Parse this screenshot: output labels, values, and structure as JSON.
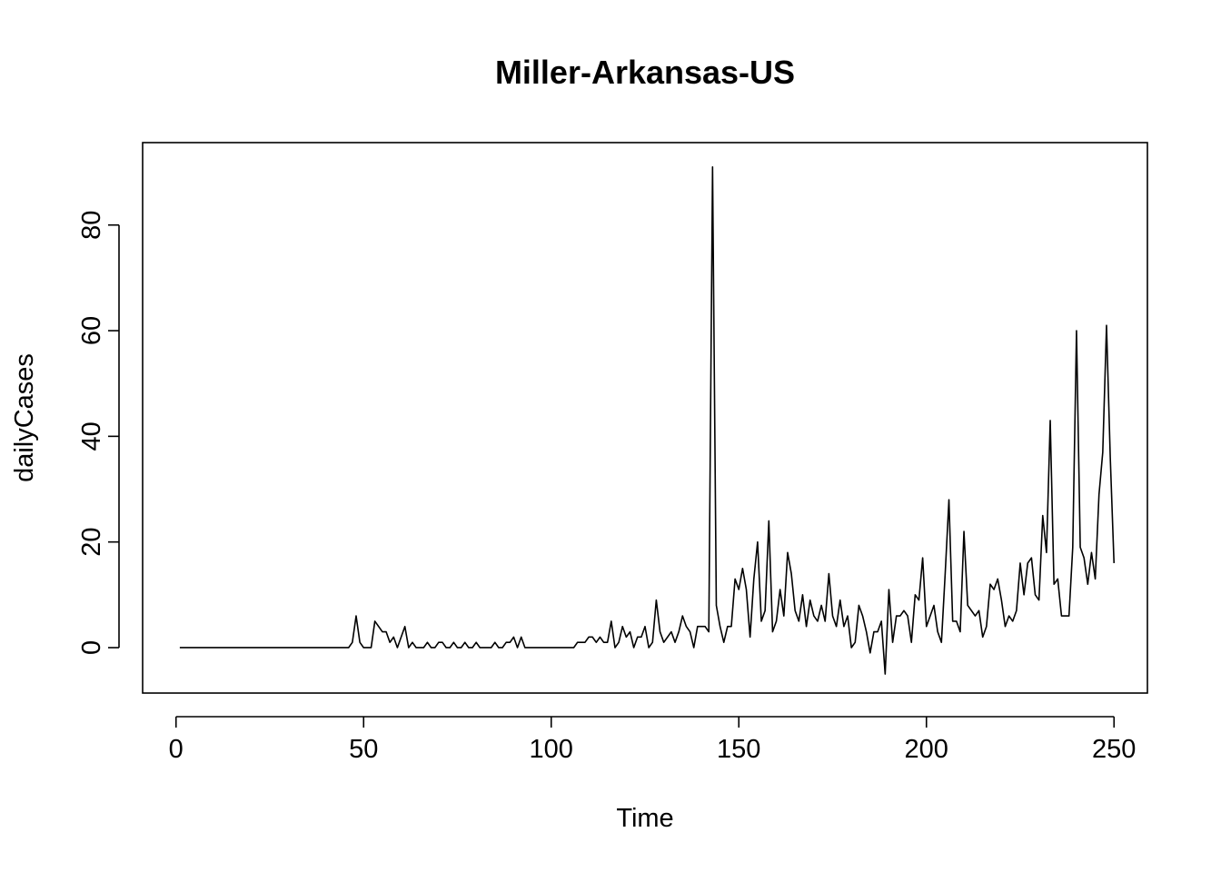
{
  "chart_data": {
    "type": "line",
    "title": "Miller-Arkansas-US",
    "xlabel": "Time",
    "ylabel": "dailyCases",
    "xlim": [
      -8.9,
      258.9
    ],
    "ylim": [
      -8.6,
      95.6
    ],
    "xticks": [
      0,
      50,
      100,
      150,
      200,
      250
    ],
    "yticks": [
      0,
      20,
      40,
      60,
      80
    ],
    "x_start": 1,
    "series": [
      {
        "color": "#000000",
        "values": [
          0,
          0,
          0,
          0,
          0,
          0,
          0,
          0,
          0,
          0,
          0,
          0,
          0,
          0,
          0,
          0,
          0,
          0,
          0,
          0,
          0,
          0,
          0,
          0,
          0,
          0,
          0,
          0,
          0,
          0,
          0,
          0,
          0,
          0,
          0,
          0,
          0,
          0,
          0,
          0,
          0,
          0,
          0,
          0,
          0,
          0,
          1,
          6,
          1,
          0,
          0,
          0,
          5,
          4,
          3,
          3,
          1,
          2,
          0,
          2,
          4,
          0,
          1,
          0,
          0,
          0,
          1,
          0,
          0,
          1,
          1,
          0,
          0,
          1,
          0,
          0,
          1,
          0,
          0,
          1,
          0,
          0,
          0,
          0,
          1,
          0,
          0,
          1,
          1,
          2,
          0,
          2,
          0,
          0,
          0,
          0,
          0,
          0,
          0,
          0,
          0,
          0,
          0,
          0,
          0,
          0,
          1,
          1,
          1,
          2,
          2,
          1,
          2,
          1,
          1,
          5,
          0,
          1,
          4,
          2,
          3,
          0,
          2,
          2,
          4,
          0,
          1,
          9,
          3,
          1,
          2,
          3,
          1,
          3,
          6,
          4,
          3,
          0,
          4,
          4,
          4,
          3,
          91,
          8,
          4,
          1,
          4,
          4,
          13,
          11,
          15,
          11,
          2,
          13,
          20,
          5,
          7,
          24,
          3,
          5,
          11,
          6,
          18,
          14,
          7,
          5,
          10,
          4,
          9,
          6,
          5,
          8,
          5,
          14,
          6,
          4,
          9,
          4,
          6,
          0,
          1,
          8,
          6,
          3,
          -1,
          3,
          3,
          5,
          -5,
          11,
          1,
          6,
          6,
          7,
          6,
          1,
          10,
          9,
          17,
          4,
          6,
          8,
          3,
          1,
          14,
          28,
          5,
          5,
          3,
          22,
          8,
          7,
          6,
          7,
          2,
          4,
          12,
          11,
          13,
          9,
          4,
          6,
          5,
          7,
          16,
          10,
          16,
          17,
          10,
          9,
          25,
          18,
          43,
          12,
          13,
          6,
          6,
          6,
          19,
          60,
          19,
          17,
          12,
          18,
          13,
          29,
          37,
          61,
          36,
          16
        ]
      }
    ]
  }
}
